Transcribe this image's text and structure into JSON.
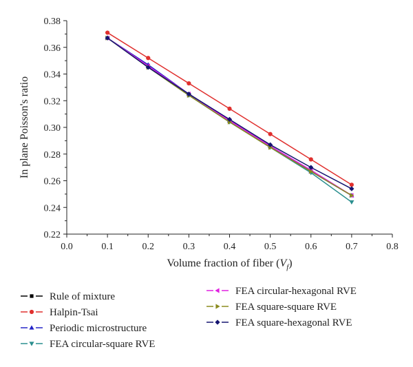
{
  "chart_data": {
    "type": "line",
    "xlabel": "Volume fraction of fiber (",
    "xlabel_var": "V",
    "xlabel_sub": "f",
    "xlabel_end": ")",
    "ylabel": "In plane Poisson's ratio",
    "xlim": [
      0.0,
      0.8
    ],
    "ylim": [
      0.22,
      0.38
    ],
    "xticks": [
      "0.0",
      "0.1",
      "0.2",
      "0.3",
      "0.4",
      "0.5",
      "0.6",
      "0.7",
      "0.8"
    ],
    "yticks": [
      "0.22",
      "0.24",
      "0.26",
      "0.28",
      "0.30",
      "0.32",
      "0.34",
      "0.36",
      "0.38"
    ],
    "x": [
      0.1,
      0.2,
      0.3,
      0.4,
      0.5,
      0.6,
      0.7
    ],
    "legend_position": "bottom",
    "series": [
      {
        "name": "Rule of mixture",
        "color": "#000000",
        "marker": "square",
        "values": [
          0.367,
          0.346,
          0.325,
          0.305,
          0.286,
          0.267,
          0.249
        ]
      },
      {
        "name": "Halpin-Tsai",
        "color": "#e0302e",
        "marker": "circle",
        "values": [
          0.371,
          0.352,
          0.333,
          0.314,
          0.295,
          0.276,
          0.257
        ]
      },
      {
        "name": "Periodic microstructure",
        "color": "#2424c8",
        "marker": "triangle-up",
        "values": [
          0.367,
          0.347,
          0.325,
          0.305,
          0.286,
          0.267,
          0.249
        ]
      },
      {
        "name": "FEA circular-square RVE",
        "color": "#2b8f8f",
        "marker": "triangle-down",
        "values": [
          0.367,
          0.345,
          0.324,
          0.304,
          0.285,
          0.266,
          0.244
        ]
      },
      {
        "name": "FEA circular-hexagonal RVE",
        "color": "#e020e0",
        "marker": "triangle-left",
        "values": [
          0.367,
          0.346,
          0.325,
          0.305,
          0.286,
          0.268,
          0.249
        ]
      },
      {
        "name": "FEA square-square RVE",
        "color": "#8a8a1e",
        "marker": "triangle-right",
        "values": [
          0.367,
          0.345,
          0.324,
          0.304,
          0.285,
          0.267,
          0.249
        ]
      },
      {
        "name": "FEA square-hexagonal RVE",
        "color": "#141470",
        "marker": "diamond",
        "values": [
          0.367,
          0.345,
          0.325,
          0.306,
          0.287,
          0.27,
          0.254
        ]
      }
    ]
  }
}
